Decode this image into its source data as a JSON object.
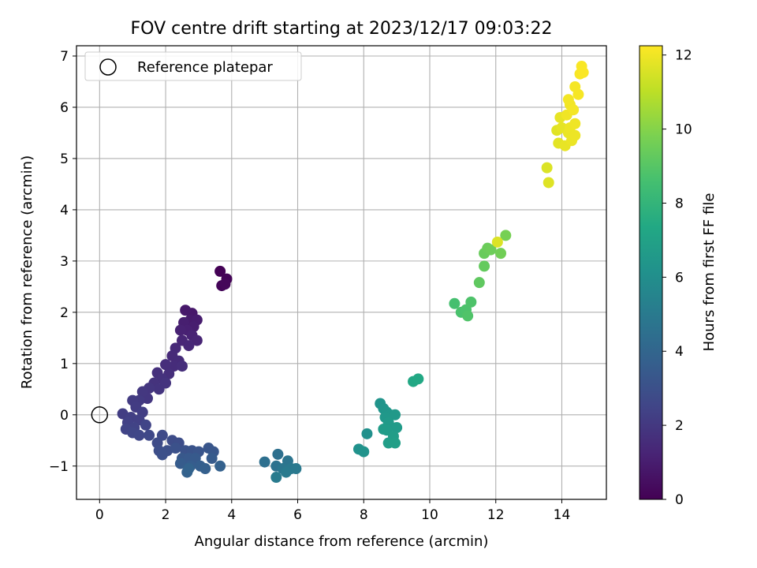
{
  "chart_data": {
    "type": "scatter",
    "title": "FOV centre drift starting at 2023/12/17 09:03:22",
    "xlabel": "Angular distance from reference (arcmin)",
    "ylabel": "Rotation from reference (arcmin)",
    "xlim": [
      -0.7,
      15.35
    ],
    "ylim": [
      -1.65,
      7.2
    ],
    "xticks": [
      0,
      2,
      4,
      6,
      8,
      10,
      12,
      14
    ],
    "yticks": [
      -1,
      0,
      1,
      2,
      3,
      4,
      5,
      6,
      7
    ],
    "grid": true,
    "legend": {
      "location": "upper-left",
      "entries": [
        "Reference platepar"
      ]
    },
    "reference_point": {
      "name": "Reference platepar",
      "x": 0,
      "y": 0
    },
    "colorbar": {
      "label": "Hours from first FF file",
      "range": [
        0,
        12.25
      ],
      "ticks": [
        0,
        2,
        4,
        6,
        8,
        10,
        12
      ],
      "colormap": "viridis"
    },
    "points": [
      [
        3.65,
        2.8,
        0.05
      ],
      [
        3.85,
        2.65,
        0.1
      ],
      [
        3.7,
        2.52,
        0.15
      ],
      [
        3.8,
        2.55,
        0.2
      ],
      [
        2.8,
        1.98,
        0.8
      ],
      [
        2.6,
        2.04,
        0.85
      ],
      [
        2.75,
        1.85,
        0.9
      ],
      [
        2.95,
        1.85,
        0.95
      ],
      [
        2.85,
        1.72,
        1.0
      ],
      [
        2.55,
        1.8,
        1.05
      ],
      [
        2.65,
        1.65,
        1.1
      ],
      [
        2.45,
        1.65,
        1.15
      ],
      [
        2.8,
        1.55,
        1.2
      ],
      [
        2.95,
        1.45,
        1.25
      ],
      [
        2.5,
        1.45,
        1.3
      ],
      [
        2.7,
        1.35,
        1.35
      ],
      [
        2.3,
        1.3,
        1.4
      ],
      [
        2.2,
        1.15,
        1.45
      ],
      [
        2.4,
        1.05,
        1.5
      ],
      [
        2.25,
        0.95,
        1.55
      ],
      [
        2.0,
        0.98,
        1.6
      ],
      [
        2.5,
        0.95,
        1.62
      ],
      [
        2.1,
        0.8,
        1.65
      ],
      [
        1.75,
        0.82,
        1.7
      ],
      [
        1.9,
        0.7,
        1.75
      ],
      [
        1.65,
        0.62,
        1.8
      ],
      [
        2.0,
        0.62,
        1.82
      ],
      [
        1.8,
        0.5,
        1.85
      ],
      [
        1.5,
        0.52,
        1.9
      ],
      [
        1.45,
        0.32,
        1.95
      ],
      [
        1.3,
        0.45,
        2.0
      ],
      [
        1.2,
        0.28,
        2.05
      ],
      [
        1.0,
        0.28,
        2.1
      ],
      [
        1.1,
        0.15,
        2.15
      ],
      [
        0.7,
        0.02,
        2.2
      ],
      [
        1.3,
        0.05,
        2.22
      ],
      [
        0.95,
        -0.05,
        2.25
      ],
      [
        1.2,
        -0.1,
        2.3
      ],
      [
        0.85,
        -0.15,
        2.35
      ],
      [
        1.05,
        -0.25,
        2.4
      ],
      [
        0.8,
        -0.28,
        2.45
      ],
      [
        1.4,
        -0.2,
        2.5
      ],
      [
        1.0,
        -0.35,
        2.55
      ],
      [
        1.2,
        -0.4,
        2.6
      ],
      [
        1.5,
        -0.4,
        2.65
      ],
      [
        1.9,
        -0.4,
        2.7
      ],
      [
        1.75,
        -0.55,
        2.75
      ],
      [
        2.2,
        -0.5,
        2.8
      ],
      [
        2.4,
        -0.55,
        2.85
      ],
      [
        1.8,
        -0.7,
        2.9
      ],
      [
        2.05,
        -0.7,
        2.95
      ],
      [
        1.9,
        -0.78,
        3.0
      ],
      [
        2.3,
        -0.65,
        3.05
      ],
      [
        2.6,
        -0.7,
        3.1
      ],
      [
        2.8,
        -0.7,
        3.15
      ],
      [
        3.0,
        -0.72,
        3.2
      ],
      [
        3.3,
        -0.65,
        3.25
      ],
      [
        3.45,
        -0.72,
        3.3
      ],
      [
        2.5,
        -0.85,
        3.35
      ],
      [
        2.7,
        -0.85,
        3.4
      ],
      [
        2.9,
        -0.85,
        3.45
      ],
      [
        3.4,
        -0.85,
        3.5
      ],
      [
        2.45,
        -0.95,
        3.55
      ],
      [
        2.75,
        -1.0,
        3.6
      ],
      [
        3.05,
        -1.0,
        3.65
      ],
      [
        3.2,
        -1.05,
        3.7
      ],
      [
        3.65,
        -1.0,
        3.75
      ],
      [
        2.65,
        -1.12,
        3.8
      ],
      [
        2.7,
        -1.05,
        3.85
      ],
      [
        5.0,
        -0.92,
        4.45
      ],
      [
        5.4,
        -0.77,
        4.5
      ],
      [
        5.35,
        -1.0,
        4.6
      ],
      [
        5.7,
        -0.9,
        4.7
      ],
      [
        5.55,
        -1.05,
        4.8
      ],
      [
        5.8,
        -1.05,
        4.9
      ],
      [
        5.95,
        -1.05,
        4.95
      ],
      [
        5.65,
        -1.12,
        5.0
      ],
      [
        5.35,
        -1.22,
        5.05
      ],
      [
        8.1,
        -0.37,
        6.1
      ],
      [
        7.85,
        -0.67,
        6.2
      ],
      [
        8.0,
        -0.72,
        6.25
      ],
      [
        8.5,
        0.22,
        6.3
      ],
      [
        8.6,
        0.12,
        6.35
      ],
      [
        8.7,
        0.05,
        6.4
      ],
      [
        8.8,
        0.0,
        6.45
      ],
      [
        8.65,
        -0.05,
        6.5
      ],
      [
        8.95,
        0.0,
        6.55
      ],
      [
        8.75,
        -0.15,
        6.6
      ],
      [
        9.0,
        -0.25,
        6.65
      ],
      [
        8.6,
        -0.28,
        6.7
      ],
      [
        8.7,
        -0.3,
        6.72
      ],
      [
        8.9,
        -0.42,
        6.75
      ],
      [
        8.75,
        -0.55,
        6.8
      ],
      [
        8.95,
        -0.55,
        6.85
      ],
      [
        9.5,
        0.65,
        7.3
      ],
      [
        9.65,
        0.7,
        7.35
      ],
      [
        10.75,
        2.17,
        8.6
      ],
      [
        10.95,
        2.0,
        8.7
      ],
      [
        11.1,
        2.05,
        8.75
      ],
      [
        11.25,
        2.2,
        8.8
      ],
      [
        11.15,
        1.93,
        8.85
      ],
      [
        11.5,
        2.58,
        9.2
      ],
      [
        11.65,
        2.9,
        9.3
      ],
      [
        11.65,
        3.15,
        9.4
      ],
      [
        11.75,
        3.25,
        9.45
      ],
      [
        11.85,
        3.22,
        9.5
      ],
      [
        12.15,
        3.15,
        9.6
      ],
      [
        12.3,
        3.5,
        9.7
      ],
      [
        12.05,
        3.37,
        11.6
      ],
      [
        13.55,
        4.82,
        11.6
      ],
      [
        13.6,
        4.53,
        11.65
      ],
      [
        13.85,
        5.55,
        11.7
      ],
      [
        13.9,
        5.3,
        11.75
      ],
      [
        14.0,
        5.6,
        11.8
      ],
      [
        13.95,
        5.8,
        11.82
      ],
      [
        14.1,
        5.25,
        11.85
      ],
      [
        14.2,
        5.5,
        11.88
      ],
      [
        14.3,
        5.35,
        11.9
      ],
      [
        14.25,
        5.6,
        11.92
      ],
      [
        14.4,
        5.45,
        11.95
      ],
      [
        14.4,
        5.68,
        11.98
      ],
      [
        14.15,
        5.85,
        12.0
      ],
      [
        14.25,
        6.05,
        12.02
      ],
      [
        14.2,
        6.15,
        12.05
      ],
      [
        14.35,
        5.95,
        12.08
      ],
      [
        14.4,
        6.4,
        12.1
      ],
      [
        14.5,
        6.25,
        12.12
      ],
      [
        14.55,
        6.65,
        12.15
      ],
      [
        14.6,
        6.8,
        12.18
      ],
      [
        14.65,
        6.68,
        12.2
      ]
    ]
  }
}
